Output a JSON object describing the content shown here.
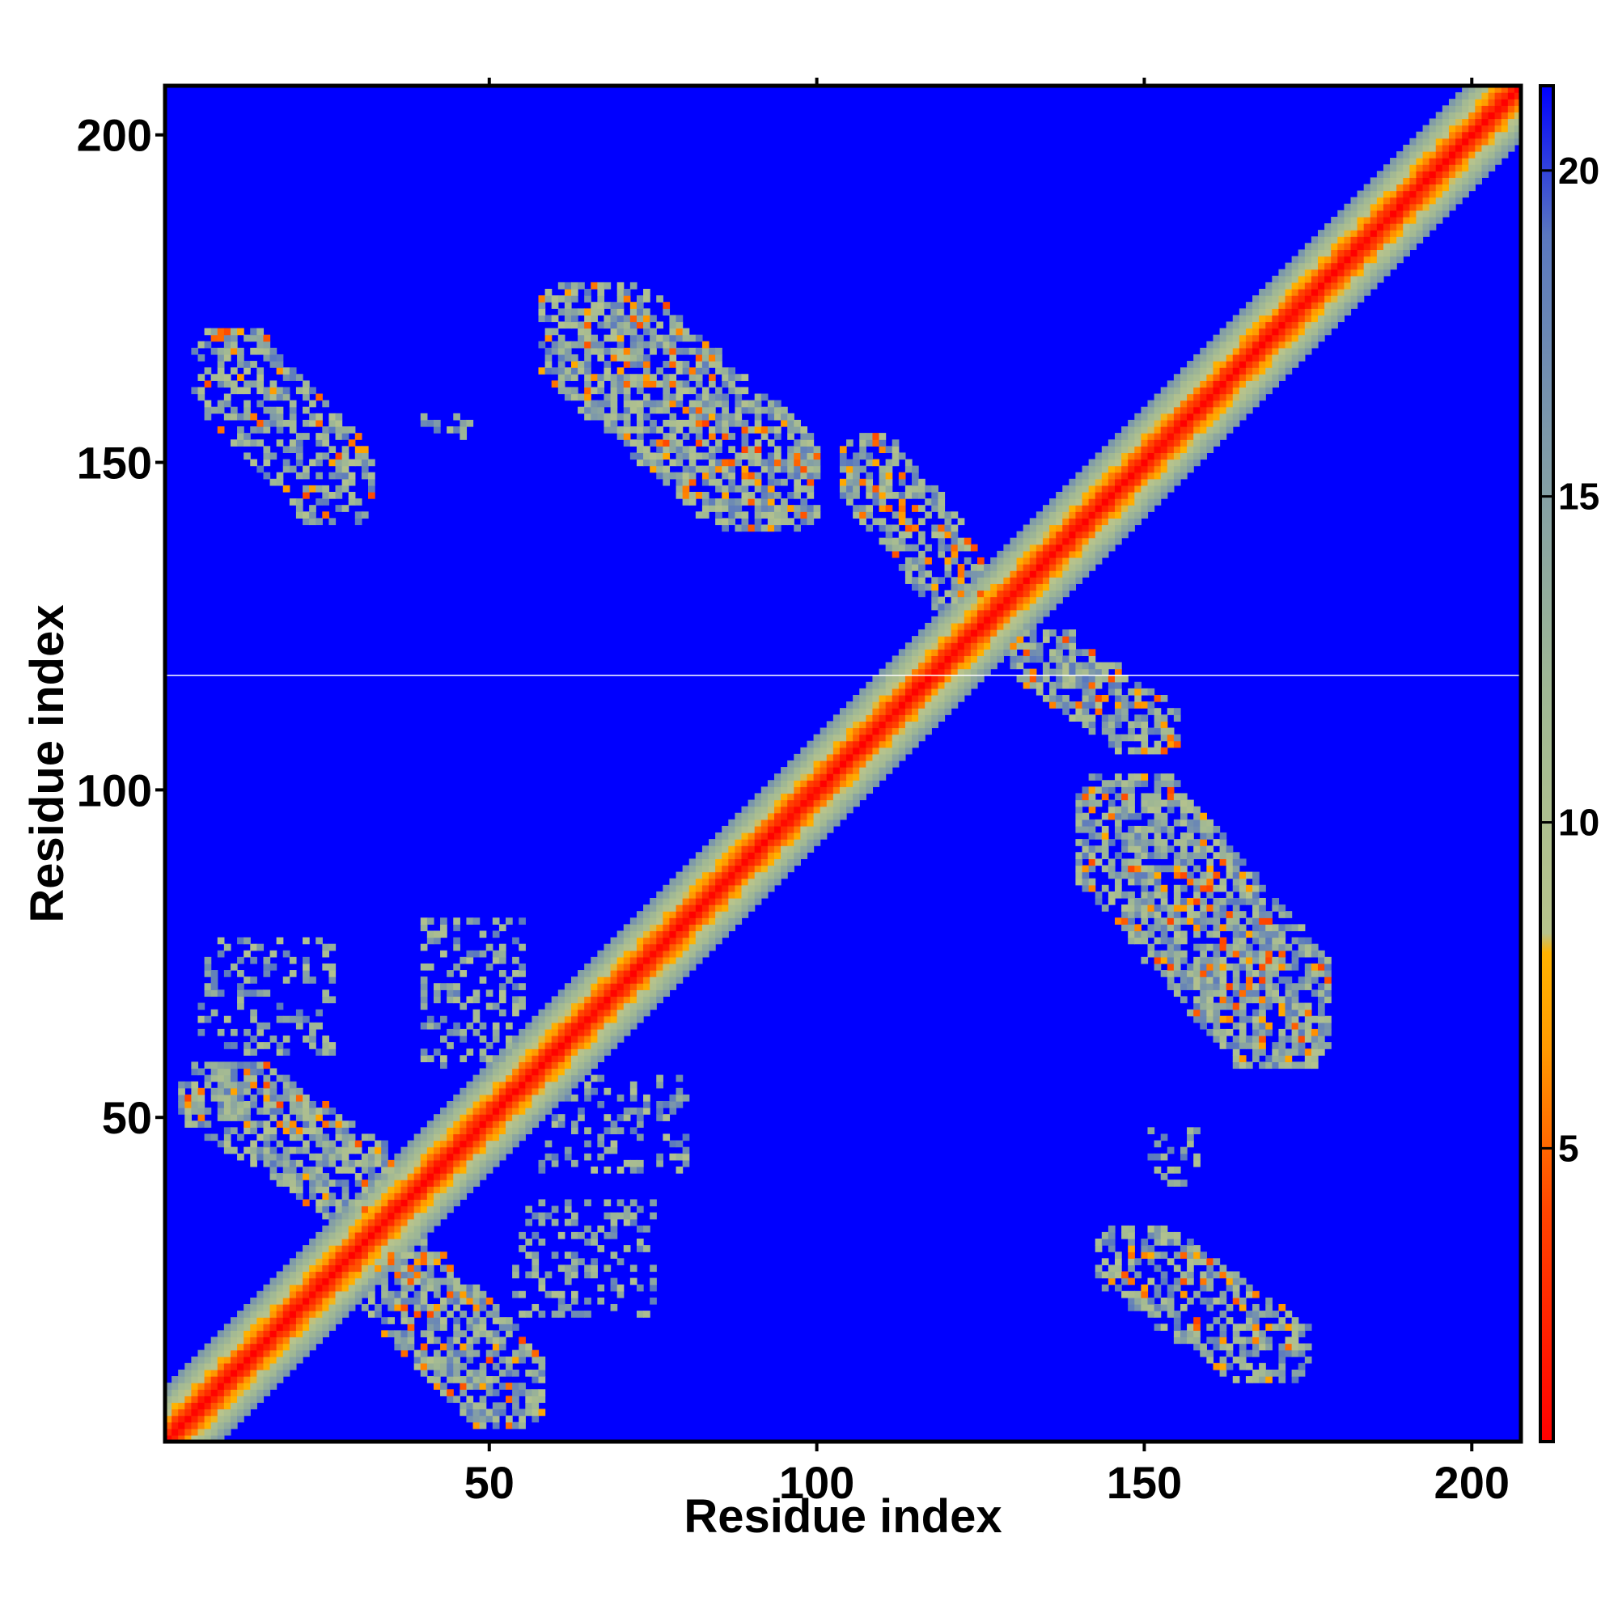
{
  "chart_data": {
    "type": "heatmap",
    "title": "",
    "xlabel": "Residue index",
    "ylabel": "Residue index",
    "n_residues": 207,
    "xlim": [
      1,
      207
    ],
    "ylim": [
      1,
      207
    ],
    "x_ticks": [
      50,
      100,
      150,
      200
    ],
    "y_ticks": [
      50,
      100,
      150,
      200
    ],
    "x_tick_labels": [
      "50",
      "100",
      "150",
      "200"
    ],
    "y_tick_labels": [
      "50",
      "100",
      "150",
      "200"
    ],
    "value_description": "pairwise residue distance map (diagonal = 0, far pairs saturate at max)",
    "colorbar": {
      "range": [
        0.5,
        21.3
      ],
      "ticks": [
        5,
        10,
        15,
        20
      ],
      "tick_labels": [
        "5",
        "10",
        "15",
        "20"
      ],
      "stops": [
        {
          "value": 0.5,
          "color": "#ff0000"
        },
        {
          "value": 4.0,
          "color": "#ff4400"
        },
        {
          "value": 6.5,
          "color": "#ff9900"
        },
        {
          "value": 8.0,
          "color": "#ffb300"
        },
        {
          "value": 8.3,
          "color": "#b8c48c"
        },
        {
          "value": 12.0,
          "color": "#a0b894"
        },
        {
          "value": 16.0,
          "color": "#7c98aa"
        },
        {
          "value": 19.0,
          "color": "#5a78bf"
        },
        {
          "value": 21.3,
          "color": "#0000ff"
        }
      ]
    },
    "background_value": 21.3,
    "diagonal_band": {
      "center_value": 0.5,
      "falloff_per_residue": 1.9,
      "max_offset": 8
    },
    "contact_regions": [
      {
        "x_range": [
          58,
          100
        ],
        "y_range": [
          140,
          177
        ],
        "orientation": "antiparallel",
        "density": 0.75
      },
      {
        "x_range": [
          5,
          32
        ],
        "y_range": [
          141,
          170
        ],
        "orientation": "antiparallel",
        "density": 0.55
      },
      {
        "x_range": [
          40,
          48
        ],
        "y_range": [
          154,
          157
        ],
        "orientation": "scatter",
        "density": 0.35
      },
      {
        "x_range": [
          104,
          125
        ],
        "y_range": [
          128,
          154
        ],
        "orientation": "antiparallel",
        "density": 0.7
      },
      {
        "x_range": [
          130,
          155
        ],
        "y_range": [
          106,
          124
        ],
        "orientation": "antiparallel",
        "density": 0.7
      },
      {
        "x_range": [
          140,
          178
        ],
        "y_range": [
          58,
          102
        ],
        "orientation": "antiparallel",
        "density": 0.75
      },
      {
        "x_range": [
          143,
          175
        ],
        "y_range": [
          10,
          33
        ],
        "orientation": "antiparallel",
        "density": 0.55
      },
      {
        "x_range": [
          151,
          158
        ],
        "y_range": [
          40,
          48
        ],
        "orientation": "scatter",
        "density": 0.35
      },
      {
        "x_range": [
          3,
          38
        ],
        "y_range": [
          35,
          58
        ],
        "orientation": "antiparallel",
        "density": 0.7
      },
      {
        "x_range": [
          30,
          58
        ],
        "y_range": [
          3,
          32
        ],
        "orientation": "antiparallel",
        "density": 0.7
      },
      {
        "x_range": [
          58,
          80
        ],
        "y_range": [
          42,
          56
        ],
        "orientation": "scatter",
        "density": 0.3
      },
      {
        "x_range": [
          54,
          75
        ],
        "y_range": [
          20,
          37
        ],
        "orientation": "scatter",
        "density": 0.3
      },
      {
        "x_range": [
          6,
          26
        ],
        "y_range": [
          60,
          77
        ],
        "orientation": "scatter",
        "density": 0.3
      },
      {
        "x_range": [
          40,
          55
        ],
        "y_range": [
          58,
          80
        ],
        "orientation": "scatter",
        "density": 0.35
      }
    ],
    "rasterization_artifact": {
      "type": "horizontal_white_line",
      "y_value": 117
    }
  }
}
